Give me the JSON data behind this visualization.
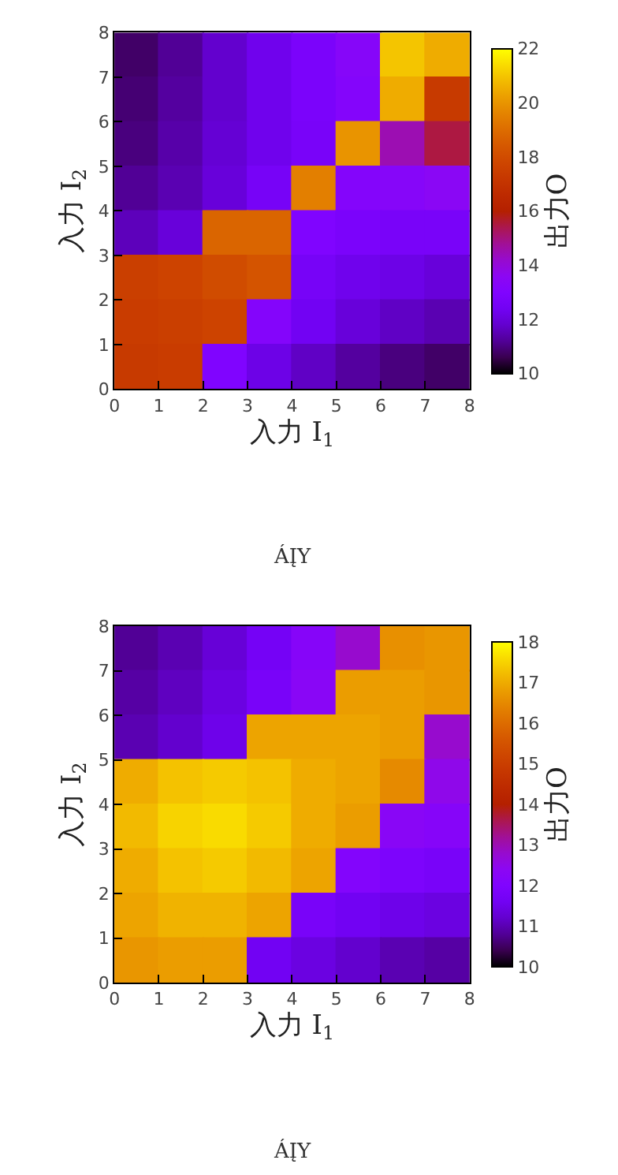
{
  "chart_data": [
    {
      "type": "scatter",
      "marker": "square",
      "xlabel": "入力 I$_{1}$",
      "ylabel": "入力 I$_{2}$",
      "clabel": "出力O",
      "annotations": [
        "ÁĮY"
      ],
      "x": [
        0.5,
        1.5,
        2.5,
        3.5,
        4.5,
        5.5,
        6.5,
        7.5,
        0.5,
        1.5,
        2.5,
        3.5,
        4.5,
        5.5,
        6.5,
        7.5,
        0.5,
        1.5,
        2.5,
        3.5,
        4.5,
        5.5,
        6.5,
        7.5,
        0.5,
        1.5,
        2.5,
        3.5,
        4.5,
        5.5,
        6.5,
        7.5,
        0.5,
        1.5,
        2.5,
        3.5,
        4.5,
        5.5,
        6.5,
        7.5,
        0.5,
        1.5,
        2.5,
        3.5,
        4.5,
        5.5,
        6.5,
        7.5,
        0.5,
        1.5,
        2.5,
        3.5,
        4.5,
        5.5,
        6.5,
        7.5,
        0.5,
        1.5,
        2.5,
        3.5,
        4.5,
        5.5,
        6.5,
        7.5
      ],
      "values": [
        7.5,
        7.5,
        7.5,
        7.5,
        7.5,
        7.5,
        7.5,
        7.5,
        6.5,
        6.5,
        6.5,
        6.5,
        6.5,
        6.5,
        6.5,
        6.5,
        5.5,
        5.5,
        5.5,
        5.5,
        5.5,
        5.5,
        5.5,
        5.5,
        4.5,
        4.5,
        4.5,
        4.5,
        4.5,
        4.5,
        4.5,
        4.5,
        3.5,
        3.5,
        3.5,
        3.5,
        3.5,
        3.5,
        3.5,
        3.5,
        2.5,
        2.5,
        2.5,
        2.5,
        2.5,
        2.5,
        2.5,
        2.5,
        1.5,
        1.5,
        1.5,
        1.5,
        1.5,
        1.5,
        1.5,
        1.5,
        0.5,
        0.5,
        0.5,
        0.5,
        0.5,
        0.5,
        0.5,
        0.5
      ],
      "cvalues": [
        10.8,
        11.2,
        11.8,
        12.3,
        12.8,
        13.3,
        21,
        20.5,
        10.9,
        11.3,
        11.8,
        12.3,
        12.8,
        13.2,
        20.5,
        17.3,
        11,
        11.4,
        11.9,
        12.3,
        12.7,
        20,
        14.5,
        15.5,
        11.2,
        11.5,
        12,
        12.6,
        19.5,
        13.2,
        13.3,
        13.5,
        11.6,
        12,
        18.8,
        18.8,
        13,
        12.8,
        12.7,
        12.7,
        17.5,
        17.7,
        18,
        18.3,
        12.6,
        12.3,
        12.2,
        12,
        17.4,
        17.5,
        17.7,
        13.2,
        12.4,
        12,
        11.7,
        11.5,
        17.3,
        17.4,
        13,
        12.2,
        11.7,
        11.3,
        11,
        10.8
      ],
      "xlim": [
        0,
        8
      ],
      "ylim": [
        0,
        8
      ],
      "xticks": [
        0,
        1,
        2,
        3,
        4,
        5,
        6,
        7,
        8
      ],
      "yticks": [
        0,
        1,
        2,
        3,
        4,
        5,
        6,
        7,
        8
      ],
      "clim": [
        10,
        22
      ],
      "cticks": [
        10,
        12,
        14,
        16,
        18,
        20,
        22
      ]
    },
    {
      "type": "scatter",
      "marker": "square",
      "xlabel": "入力 I$_{1}$",
      "ylabel": "入力 I$_{2}$",
      "clabel": "出力O",
      "annotations": [
        "ÁĮY"
      ],
      "x": [
        0.5,
        1.5,
        2.5,
        3.5,
        4.5,
        5.5,
        6.5,
        7.5,
        0.5,
        1.5,
        2.5,
        3.5,
        4.5,
        5.5,
        6.5,
        7.5,
        0.5,
        1.5,
        2.5,
        3.5,
        4.5,
        5.5,
        6.5,
        7.5,
        0.5,
        1.5,
        2.5,
        3.5,
        4.5,
        5.5,
        6.5,
        7.5,
        0.5,
        1.5,
        2.5,
        3.5,
        4.5,
        5.5,
        6.5,
        7.5,
        0.5,
        1.5,
        2.5,
        3.5,
        4.5,
        5.5,
        6.5,
        7.5,
        0.5,
        1.5,
        2.5,
        3.5,
        4.5,
        5.5,
        6.5,
        7.5,
        0.5,
        1.5,
        2.5,
        3.5,
        4.5,
        5.5,
        6.5,
        7.5
      ],
      "values": [
        7.5,
        7.5,
        7.5,
        7.5,
        7.5,
        7.5,
        7.5,
        7.5,
        6.5,
        6.5,
        6.5,
        6.5,
        6.5,
        6.5,
        6.5,
        6.5,
        5.5,
        5.5,
        5.5,
        5.5,
        5.5,
        5.5,
        5.5,
        5.5,
        4.5,
        4.5,
        4.5,
        4.5,
        4.5,
        4.5,
        4.5,
        4.5,
        3.5,
        3.5,
        3.5,
        3.5,
        3.5,
        3.5,
        3.5,
        3.5,
        2.5,
        2.5,
        2.5,
        2.5,
        2.5,
        2.5,
        2.5,
        2.5,
        1.5,
        1.5,
        1.5,
        1.5,
        1.5,
        1.5,
        1.5,
        1.5,
        0.5,
        0.5,
        0.5,
        0.5,
        0.5,
        0.5,
        0.5,
        0.5
      ],
      "cvalues": [
        10.8,
        11,
        11.3,
        11.7,
        12.2,
        12.8,
        16.6,
        16.7,
        10.9,
        11.1,
        11.4,
        11.8,
        12.3,
        16.8,
        16.8,
        16.7,
        11,
        11.2,
        11.5,
        16.9,
        16.9,
        16.9,
        16.8,
        12.8,
        17,
        17.3,
        17.4,
        17.3,
        17,
        16.9,
        16.5,
        12.5,
        17.2,
        17.5,
        17.6,
        17.4,
        17,
        16.8,
        12.3,
        12.2,
        17,
        17.3,
        17.4,
        17.2,
        16.9,
        12.1,
        11.9,
        11.8,
        16.9,
        17.1,
        17.1,
        16.9,
        11.8,
        11.6,
        11.5,
        11.4,
        16.7,
        16.8,
        16.8,
        11.6,
        11.4,
        11.2,
        11,
        10.9
      ],
      "xlim": [
        0,
        8
      ],
      "ylim": [
        0,
        8
      ],
      "xticks": [
        0,
        1,
        2,
        3,
        4,
        5,
        6,
        7,
        8
      ],
      "yticks": [
        0,
        1,
        2,
        3,
        4,
        5,
        6,
        7,
        8
      ],
      "clim": [
        10,
        18
      ],
      "cticks": [
        10,
        11,
        12,
        13,
        14,
        15,
        16,
        17,
        18
      ]
    }
  ]
}
